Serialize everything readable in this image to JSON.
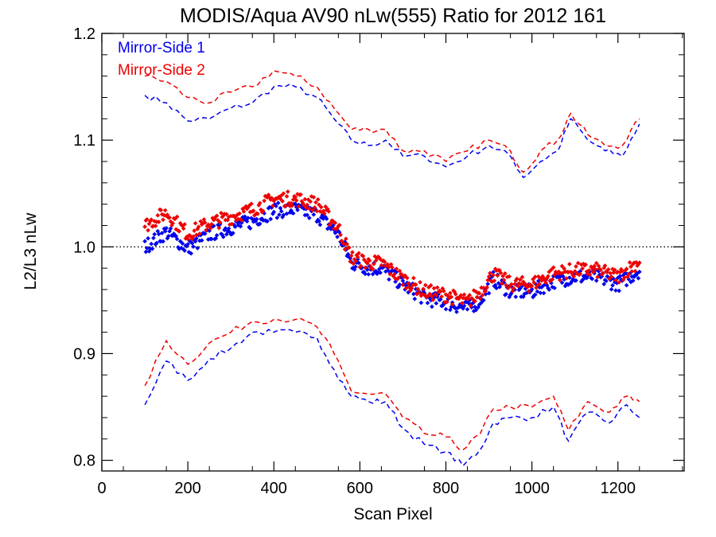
{
  "chart_data": {
    "type": "scatter",
    "title": "MODIS/Aqua AV90 nLw(555) Ratio for 2012 161",
    "xlabel": "Scan Pixel",
    "ylabel": "L2/L3 nLw",
    "xlim": [
      0,
      1354
    ],
    "ylim": [
      0.79,
      1.2
    ],
    "xticks": [
      0,
      200,
      400,
      600,
      800,
      1000,
      1200
    ],
    "xtick_labels": [
      "0",
      "200",
      "400",
      "600",
      "800",
      "1000",
      "1200"
    ],
    "yticks": [
      0.8,
      0.9,
      1.0,
      1.1,
      1.2
    ],
    "ytick_labels": [
      "0.8",
      "0.9",
      "1.0",
      "1.1",
      "1.2"
    ],
    "reference_line": {
      "y": 1.0,
      "style": "dotted"
    },
    "legend_position": "top-left",
    "series": [
      {
        "name": "Mirror-Side 1",
        "color": "#0000ee",
        "mean": [
          [
            100,
            1.0
          ],
          [
            150,
            1.014
          ],
          [
            200,
            0.998
          ],
          [
            250,
            1.012
          ],
          [
            300,
            1.018
          ],
          [
            350,
            1.024
          ],
          [
            400,
            1.034
          ],
          [
            450,
            1.035
          ],
          [
            500,
            1.03
          ],
          [
            550,
            1.012
          ],
          [
            580,
            0.985
          ],
          [
            620,
            0.98
          ],
          [
            650,
            0.98
          ],
          [
            700,
            0.965
          ],
          [
            750,
            0.952
          ],
          [
            800,
            0.948
          ],
          [
            850,
            0.942
          ],
          [
            880,
            0.95
          ],
          [
            910,
            0.97
          ],
          [
            950,
            0.958
          ],
          [
            1000,
            0.958
          ],
          [
            1050,
            0.968
          ],
          [
            1100,
            0.972
          ],
          [
            1150,
            0.972
          ],
          [
            1200,
            0.965
          ],
          [
            1250,
            0.978
          ]
        ],
        "upper": [
          [
            100,
            1.142
          ],
          [
            150,
            1.135
          ],
          [
            200,
            1.118
          ],
          [
            250,
            1.12
          ],
          [
            300,
            1.13
          ],
          [
            350,
            1.135
          ],
          [
            400,
            1.15
          ],
          [
            450,
            1.15
          ],
          [
            500,
            1.14
          ],
          [
            540,
            1.12
          ],
          [
            580,
            1.1
          ],
          [
            620,
            1.095
          ],
          [
            660,
            1.1
          ],
          [
            700,
            1.085
          ],
          [
            750,
            1.085
          ],
          [
            800,
            1.075
          ],
          [
            850,
            1.085
          ],
          [
            900,
            1.095
          ],
          [
            950,
            1.085
          ],
          [
            980,
            1.065
          ],
          [
            1020,
            1.08
          ],
          [
            1060,
            1.09
          ],
          [
            1090,
            1.12
          ],
          [
            1130,
            1.1
          ],
          [
            1170,
            1.09
          ],
          [
            1210,
            1.085
          ],
          [
            1250,
            1.115
          ]
        ],
        "lower": [
          [
            100,
            0.852
          ],
          [
            150,
            0.893
          ],
          [
            200,
            0.875
          ],
          [
            250,
            0.895
          ],
          [
            300,
            0.905
          ],
          [
            350,
            0.92
          ],
          [
            400,
            0.92
          ],
          [
            450,
            0.92
          ],
          [
            500,
            0.915
          ],
          [
            540,
            0.885
          ],
          [
            580,
            0.86
          ],
          [
            620,
            0.855
          ],
          [
            660,
            0.855
          ],
          [
            700,
            0.83
          ],
          [
            750,
            0.815
          ],
          [
            800,
            0.808
          ],
          [
            840,
            0.795
          ],
          [
            880,
            0.81
          ],
          [
            910,
            0.835
          ],
          [
            950,
            0.84
          ],
          [
            1000,
            0.84
          ],
          [
            1050,
            0.85
          ],
          [
            1085,
            0.818
          ],
          [
            1130,
            0.845
          ],
          [
            1180,
            0.835
          ],
          [
            1220,
            0.852
          ],
          [
            1250,
            0.84
          ]
        ]
      },
      {
        "name": "Mirror-Side 2",
        "color": "#ee0000",
        "mean": [
          [
            100,
            1.02
          ],
          [
            150,
            1.032
          ],
          [
            200,
            1.012
          ],
          [
            250,
            1.022
          ],
          [
            300,
            1.028
          ],
          [
            350,
            1.035
          ],
          [
            400,
            1.045
          ],
          [
            450,
            1.045
          ],
          [
            500,
            1.04
          ],
          [
            550,
            1.018
          ],
          [
            580,
            0.99
          ],
          [
            620,
            0.985
          ],
          [
            650,
            0.985
          ],
          [
            700,
            0.97
          ],
          [
            750,
            0.958
          ],
          [
            800,
            0.955
          ],
          [
            850,
            0.948
          ],
          [
            880,
            0.958
          ],
          [
            910,
            0.975
          ],
          [
            950,
            0.965
          ],
          [
            1000,
            0.965
          ],
          [
            1050,
            0.975
          ],
          [
            1100,
            0.978
          ],
          [
            1150,
            0.978
          ],
          [
            1200,
            0.972
          ],
          [
            1250,
            0.987
          ]
        ],
        "upper": [
          [
            100,
            1.16
          ],
          [
            150,
            1.155
          ],
          [
            200,
            1.14
          ],
          [
            250,
            1.135
          ],
          [
            300,
            1.145
          ],
          [
            350,
            1.15
          ],
          [
            400,
            1.165
          ],
          [
            450,
            1.16
          ],
          [
            500,
            1.15
          ],
          [
            540,
            1.13
          ],
          [
            580,
            1.11
          ],
          [
            620,
            1.11
          ],
          [
            660,
            1.11
          ],
          [
            700,
            1.09
          ],
          [
            750,
            1.09
          ],
          [
            800,
            1.08
          ],
          [
            850,
            1.09
          ],
          [
            900,
            1.1
          ],
          [
            950,
            1.09
          ],
          [
            980,
            1.07
          ],
          [
            1020,
            1.09
          ],
          [
            1060,
            1.1
          ],
          [
            1090,
            1.125
          ],
          [
            1130,
            1.105
          ],
          [
            1170,
            1.095
          ],
          [
            1210,
            1.095
          ],
          [
            1250,
            1.12
          ]
        ],
        "lower": [
          [
            100,
            0.87
          ],
          [
            150,
            0.912
          ],
          [
            200,
            0.89
          ],
          [
            250,
            0.91
          ],
          [
            300,
            0.92
          ],
          [
            350,
            0.93
          ],
          [
            400,
            0.932
          ],
          [
            450,
            0.932
          ],
          [
            500,
            0.925
          ],
          [
            540,
            0.9
          ],
          [
            580,
            0.865
          ],
          [
            620,
            0.862
          ],
          [
            660,
            0.862
          ],
          [
            700,
            0.84
          ],
          [
            750,
            0.825
          ],
          [
            800,
            0.822
          ],
          [
            840,
            0.81
          ],
          [
            880,
            0.825
          ],
          [
            910,
            0.848
          ],
          [
            950,
            0.85
          ],
          [
            1000,
            0.85
          ],
          [
            1050,
            0.86
          ],
          [
            1085,
            0.828
          ],
          [
            1130,
            0.855
          ],
          [
            1180,
            0.845
          ],
          [
            1220,
            0.86
          ],
          [
            1250,
            0.855
          ]
        ]
      }
    ]
  }
}
